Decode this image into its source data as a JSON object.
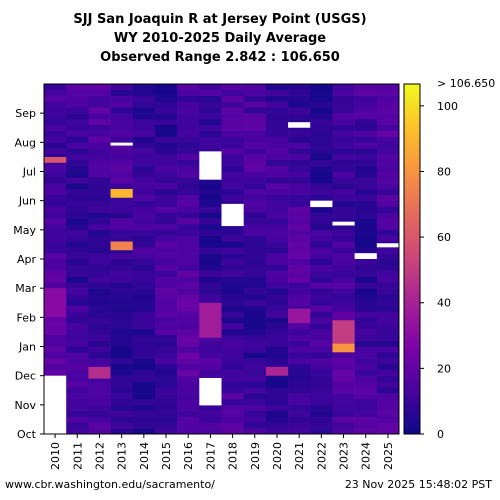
{
  "title_line1": "SJJ San Joaquin R at Jersey Point (USGS)",
  "title_line2": "WY 2010-2025 Daily Average",
  "title_line3": "Observed Range 2.842 : 106.650",
  "footer_left": "www.cbr.washington.edu/sacramento/",
  "footer_right": "23 Nov 2025 15:48:02 PST",
  "chart_data": {
    "type": "heatmap",
    "title": "SJJ San Joaquin R at Jersey Point (USGS)",
    "subtitle": "WY 2010-2025 Daily Average",
    "observed_range": [
      2.842,
      106.65
    ],
    "x_categories": [
      "2010",
      "2011",
      "2012",
      "2013",
      "2014",
      "2015",
      "2016",
      "2017",
      "2018",
      "2019",
      "2020",
      "2021",
      "2022",
      "2023",
      "2024",
      "2025"
    ],
    "y_months": [
      "Oct",
      "Nov",
      "Dec",
      "Jan",
      "Feb",
      "Mar",
      "Apr",
      "May",
      "Jun",
      "Jul",
      "Aug",
      "Sep"
    ],
    "colorbar": {
      "min": 0,
      "max": 106.65,
      "ticks": [
        0,
        20,
        40,
        60,
        80,
        100
      ],
      "top_label": "> 106.650"
    },
    "colormap": "plasma",
    "base_level": [
      14,
      10,
      11,
      9,
      8,
      10,
      15,
      9,
      11,
      10,
      9,
      12,
      9,
      13,
      10,
      12
    ],
    "highlights": [
      {
        "year": "2010",
        "start_month": 9.3,
        "end_month": 9.5,
        "value": 60
      },
      {
        "year": "2010",
        "start_month": 4.0,
        "end_month": 5.0,
        "value": 30
      },
      {
        "year": "2013",
        "start_month": 6.3,
        "end_month": 6.6,
        "value": 75
      },
      {
        "year": "2013",
        "start_month": 8.1,
        "end_month": 8.4,
        "value": 90
      },
      {
        "year": "2012",
        "start_month": 1.9,
        "end_month": 2.3,
        "value": 45
      },
      {
        "year": "2017",
        "start_month": 3.3,
        "end_month": 4.5,
        "value": 38
      },
      {
        "year": "2020",
        "start_month": 2.0,
        "end_month": 2.3,
        "value": 42
      },
      {
        "year": "2021",
        "start_month": 3.8,
        "end_month": 4.3,
        "value": 35
      },
      {
        "year": "2023",
        "start_month": 3.1,
        "end_month": 3.9,
        "value": 50
      },
      {
        "year": "2023",
        "start_month": 2.8,
        "end_month": 3.1,
        "value": 80
      }
    ],
    "missing_data": [
      {
        "year": "2010",
        "start_month": 0.0,
        "end_month": 2.0
      },
      {
        "year": "2017",
        "start_month": 0.98,
        "end_month": 1.92
      },
      {
        "year": "2017",
        "start_month": 8.72,
        "end_month": 9.69
      },
      {
        "year": "2018",
        "start_month": 7.13,
        "end_month": 7.89
      },
      {
        "year": "2021",
        "start_month": 10.5,
        "end_month": 10.69
      },
      {
        "year": "2022",
        "start_month": 7.78,
        "end_month": 8.0
      },
      {
        "year": "2023",
        "start_month": 7.15,
        "end_month": 7.28
      },
      {
        "year": "2024",
        "start_month": 6.0,
        "end_month": 6.2
      },
      {
        "year": "2025",
        "start_month": 6.4,
        "end_month": 6.54
      },
      {
        "year": "2013",
        "start_month": 9.89,
        "end_month": 9.99
      }
    ]
  }
}
